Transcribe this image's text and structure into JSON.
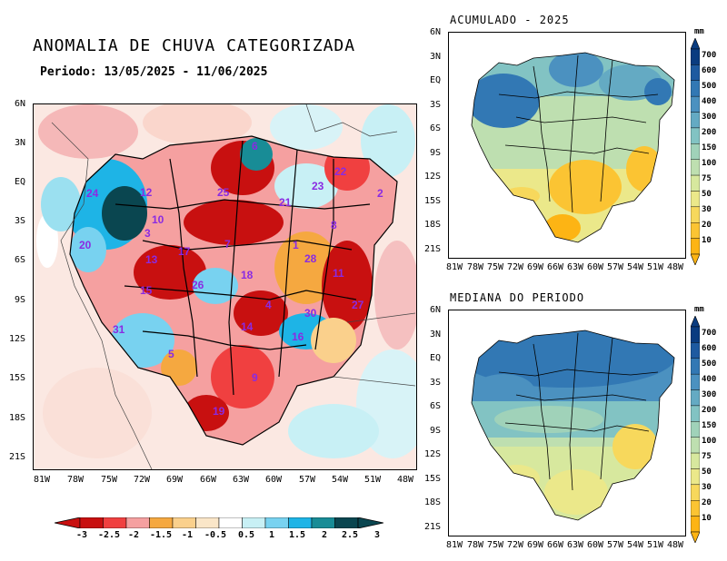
{
  "main_map": {
    "title": "ANOMALIA DE CHUVA CATEGORIZADA",
    "period": "Periodo: 13/05/2025 - 11/06/2025",
    "lat_ticks": [
      "6N",
      "3N",
      "EQ",
      "3S",
      "6S",
      "9S",
      "12S",
      "15S",
      "18S",
      "21S"
    ],
    "lon_ticks": [
      "81W",
      "78W",
      "75W",
      "72W",
      "69W",
      "66W",
      "63W",
      "60W",
      "57W",
      "54W",
      "51W",
      "48W"
    ],
    "basin_numbers": [
      "24",
      "12",
      "25",
      "6",
      "23",
      "21",
      "22",
      "2",
      "10",
      "8",
      "20",
      "3",
      "17",
      "13",
      "7",
      "1",
      "28",
      "11",
      "18",
      "26",
      "15",
      "4",
      "27",
      "30",
      "31",
      "14",
      "16",
      "5",
      "9",
      "19"
    ],
    "colorbar": {
      "labels": [
        "-3",
        "-2.5",
        "-2",
        "-1.5",
        "-1",
        "-0.5",
        "0.5",
        "1",
        "1.5",
        "2",
        "2.5",
        "3"
      ],
      "colors": [
        "#c81010",
        "#f04040",
        "#f5a0a0",
        "#f5a840",
        "#fad08c",
        "#fae6c8",
        "#ffffff",
        "#c8f0f5",
        "#78d2f0",
        "#1eb4e6",
        "#188c96",
        "#0a4650"
      ]
    }
  },
  "panels": {
    "accum": {
      "title": "ACUMULADO - 2025"
    },
    "median": {
      "title": "MEDIANA DO PERIODO"
    },
    "lat_ticks": [
      "6N",
      "3N",
      "EQ",
      "3S",
      "6S",
      "9S",
      "12S",
      "15S",
      "18S",
      "21S"
    ],
    "lon_ticks": [
      "81W",
      "78W",
      "75W",
      "72W",
      "69W",
      "66W",
      "63W",
      "60W",
      "57W",
      "54W",
      "51W",
      "48W"
    ],
    "colorbar": {
      "unit": "mm",
      "labels": [
        "700",
        "600",
        "500",
        "400",
        "300",
        "200",
        "150",
        "100",
        "75",
        "50",
        "30",
        "20",
        "10"
      ],
      "colors": [
        "#0a3c80",
        "#1e5aa0",
        "#3278b4",
        "#4b91c0",
        "#64aac3",
        "#82c3c3",
        "#a0d2b9",
        "#bedfb0",
        "#d7e89e",
        "#ebe88a",
        "#f7d85c",
        "#fbc433",
        "#fdb414"
      ]
    }
  }
}
